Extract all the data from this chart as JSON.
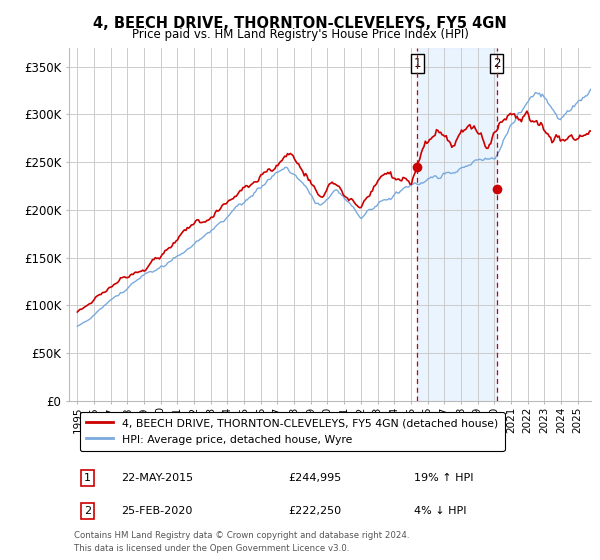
{
  "title": "4, BEECH DRIVE, THORNTON-CLEVELEYS, FY5 4GN",
  "subtitle": "Price paid vs. HM Land Registry's House Price Index (HPI)",
  "ylabel_ticks": [
    "£0",
    "£50K",
    "£100K",
    "£150K",
    "£200K",
    "£250K",
    "£300K",
    "£350K"
  ],
  "ytick_values": [
    0,
    50000,
    100000,
    150000,
    200000,
    250000,
    300000,
    350000
  ],
  "ylim": [
    0,
    370000
  ],
  "legend_line1": "4, BEECH DRIVE, THORNTON-CLEVELEYS, FY5 4GN (detached house)",
  "legend_line2": "HPI: Average price, detached house, Wyre",
  "annotation1_label": "1",
  "annotation1_date": "22-MAY-2015",
  "annotation1_price": "£244,995",
  "annotation1_hpi": "19% ↑ HPI",
  "annotation2_label": "2",
  "annotation2_date": "25-FEB-2020",
  "annotation2_price": "£222,250",
  "annotation2_hpi": "4% ↓ HPI",
  "footer1": "Contains HM Land Registry data © Crown copyright and database right 2024.",
  "footer2": "This data is licensed under the Open Government Licence v3.0.",
  "sale1_x": 2015.38,
  "sale1_y": 244995,
  "sale2_x": 2020.15,
  "sale2_y": 222250,
  "red_color": "#cc0000",
  "blue_color": "#7aaadd",
  "vline_color": "#cc0000",
  "shade_color": "#ddeeff",
  "background_color": "#ffffff",
  "grid_color": "#cccccc",
  "xlim_left": 1994.5,
  "xlim_right": 2025.8,
  "xtick_start": 1995,
  "xtick_end": 2025
}
